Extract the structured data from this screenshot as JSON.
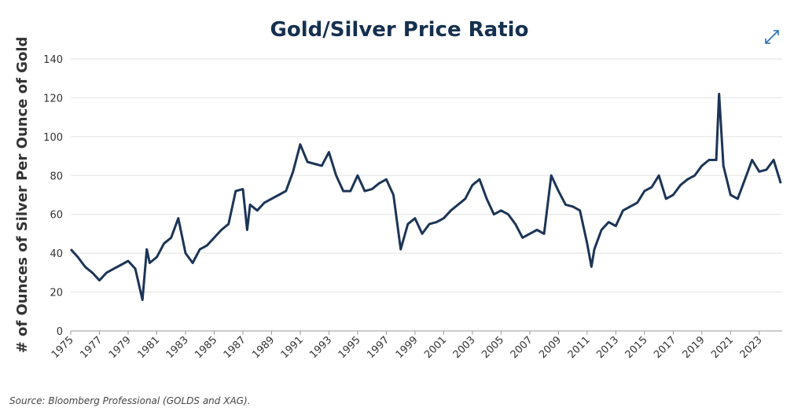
{
  "chart_data": {
    "type": "line",
    "title": "Gold/Silver Price Ratio",
    "y_label": "# of Ounces of Silver Per Ounce of Gold",
    "source": "Source: Bloomberg Professional (GOLDS and XAG).",
    "x": [
      1975.0,
      1975.5,
      1976.0,
      1976.5,
      1977.0,
      1977.5,
      1978.0,
      1978.5,
      1979.0,
      1979.5,
      1980.0,
      1980.3,
      1980.5,
      1981.0,
      1981.5,
      1982.0,
      1982.5,
      1983.0,
      1983.5,
      1984.0,
      1984.5,
      1985.0,
      1985.5,
      1986.0,
      1986.5,
      1987.0,
      1987.3,
      1987.5,
      1988.0,
      1988.5,
      1989.0,
      1989.5,
      1990.0,
      1990.5,
      1991.0,
      1991.5,
      1992.0,
      1992.5,
      1993.0,
      1993.5,
      1994.0,
      1994.5,
      1995.0,
      1995.5,
      1996.0,
      1996.5,
      1997.0,
      1997.5,
      1998.0,
      1998.5,
      1999.0,
      1999.5,
      2000.0,
      2000.5,
      2001.0,
      2001.5,
      2002.0,
      2002.5,
      2003.0,
      2003.5,
      2004.0,
      2004.5,
      2005.0,
      2005.5,
      2006.0,
      2006.5,
      2007.0,
      2007.5,
      2008.0,
      2008.5,
      2009.0,
      2009.5,
      2010.0,
      2010.5,
      2011.0,
      2011.3,
      2011.5,
      2012.0,
      2012.5,
      2013.0,
      2013.5,
      2014.0,
      2014.5,
      2015.0,
      2015.5,
      2016.0,
      2016.5,
      2017.0,
      2017.5,
      2018.0,
      2018.5,
      2019.0,
      2019.5,
      2020.0,
      2020.2,
      2020.5,
      2021.0,
      2021.5,
      2022.0,
      2022.5,
      2023.0,
      2023.5,
      2024.0,
      2024.5
    ],
    "series": [
      {
        "name": "Gold/Silver Ratio",
        "color": "#1c3557",
        "values": [
          42,
          38,
          33,
          30,
          26,
          30,
          32,
          34,
          36,
          32,
          16,
          42,
          35,
          38,
          45,
          48,
          58,
          40,
          35,
          42,
          44,
          48,
          52,
          55,
          72,
          73,
          52,
          65,
          62,
          66,
          68,
          70,
          72,
          82,
          96,
          87,
          86,
          85,
          92,
          80,
          72,
          72,
          80,
          72,
          73,
          76,
          78,
          70,
          42,
          55,
          58,
          50,
          55,
          56,
          58,
          62,
          65,
          68,
          75,
          78,
          68,
          60,
          62,
          60,
          55,
          48,
          50,
          52,
          50,
          80,
          72,
          65,
          64,
          62,
          45,
          33,
          42,
          52,
          56,
          54,
          62,
          64,
          66,
          72,
          74,
          80,
          68,
          70,
          75,
          78,
          80,
          85,
          88,
          88,
          122,
          85,
          70,
          68,
          78,
          88,
          82,
          83,
          88,
          76
        ]
      }
    ],
    "xlim": [
      1975,
      2024.6
    ],
    "xticks": [
      1975,
      1977,
      1979,
      1981,
      1983,
      1985,
      1987,
      1989,
      1991,
      1993,
      1995,
      1997,
      1999,
      2001,
      2003,
      2005,
      2007,
      2009,
      2011,
      2013,
      2015,
      2017,
      2019,
      2021,
      2023
    ],
    "ylim": [
      0,
      140
    ],
    "yticks": [
      0,
      20,
      40,
      60,
      80,
      100,
      120,
      140
    ],
    "grid": true
  }
}
